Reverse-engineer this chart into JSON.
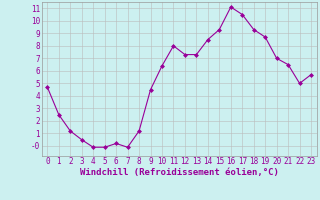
{
  "x": [
    0,
    1,
    2,
    3,
    4,
    5,
    6,
    7,
    8,
    9,
    10,
    11,
    12,
    13,
    14,
    15,
    16,
    17,
    18,
    19,
    20,
    21,
    22,
    23
  ],
  "y": [
    4.7,
    2.5,
    1.2,
    0.5,
    -0.1,
    -0.1,
    0.2,
    -0.1,
    1.2,
    4.5,
    6.4,
    8.0,
    7.3,
    7.3,
    8.5,
    9.3,
    11.1,
    10.5,
    9.3,
    8.7,
    7.0,
    6.5,
    5.0,
    5.7
  ],
  "line_color": "#990099",
  "marker": "D",
  "marker_size": 2,
  "bg_color": "#ccf0f0",
  "grid_color": "#bbbbbb",
  "xlabel": "Windchill (Refroidissement éolien,°C)",
  "xlabel_color": "#990099",
  "tick_color": "#990099",
  "ylim": [
    -0.8,
    11.5
  ],
  "xlim": [
    -0.5,
    23.5
  ],
  "yticks": [
    0,
    1,
    2,
    3,
    4,
    5,
    6,
    7,
    8,
    9,
    10,
    11
  ],
  "ytick_labels": [
    "-0",
    "1",
    "2",
    "3",
    "4",
    "5",
    "6",
    "7",
    "8",
    "9",
    "10",
    "11"
  ],
  "xticks": [
    0,
    1,
    2,
    3,
    4,
    5,
    6,
    7,
    8,
    9,
    10,
    11,
    12,
    13,
    14,
    15,
    16,
    17,
    18,
    19,
    20,
    21,
    22,
    23
  ],
  "xtick_labels": [
    "0",
    "1",
    "2",
    "3",
    "4",
    "5",
    "6",
    "7",
    "8",
    "9",
    "10",
    "11",
    "12",
    "13",
    "14",
    "15",
    "16",
    "17",
    "18",
    "19",
    "20",
    "21",
    "22",
    "23"
  ],
  "tick_fontsize": 5.5,
  "xlabel_fontsize": 6.5
}
